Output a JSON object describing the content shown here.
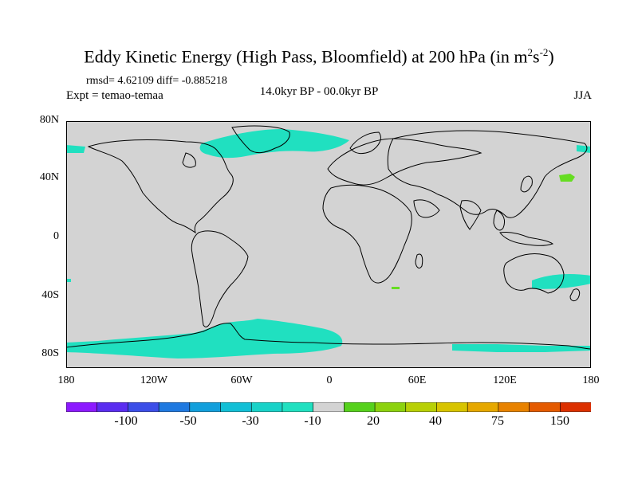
{
  "title": {
    "main": "Eddy Kinetic Energy (High Pass, Bloomfield) at 200 hPa (in m",
    "sup1": "2",
    "mid": "s",
    "sup2": "-2",
    "close": ")"
  },
  "stats": "rmsd= 4.62109 diff= -0.885218",
  "expt": "Expt = temao-temaa",
  "period": "14.0kyr BP - 00.0kyr BP",
  "season": "JJA",
  "map": {
    "projection": "cylindrical equidistant",
    "lon_range": [
      -180,
      180
    ],
    "lat_range": [
      -90,
      90
    ],
    "land_outline": "black coastlines",
    "background_color": "#d3d3d3",
    "lat_tick_labels": [
      "80N",
      "40N",
      "0",
      "40S",
      "80S"
    ],
    "lon_tick_labels": [
      "180",
      "120W",
      "60W",
      "0",
      "60E",
      "120E",
      "180"
    ],
    "anomaly_regions": [
      {
        "region": "North Atlantic / Greenland",
        "category": "-30 to -10",
        "color": "#20e0c0"
      },
      {
        "region": "Southern Ocean (Pacific/Atlantic sector)",
        "category": "-30 to -10",
        "color": "#20e0c0"
      },
      {
        "region": "Southern Ocean (Indian sector)",
        "category": "-30 to -10",
        "color": "#20e0c0"
      },
      {
        "region": "South of Australia",
        "category": "-30 to -10",
        "color": "#20e0c0"
      },
      {
        "region": "North Pacific",
        "category": "10 to 20",
        "color": "#66dd22"
      }
    ]
  },
  "colorbar": {
    "colors": [
      "#8c1aff",
      "#5a2df0",
      "#3c4ee8",
      "#1f79e0",
      "#129fdc",
      "#12bfd6",
      "#18d2c8",
      "#20e0c0",
      "#d3d3d3",
      "#56d11c",
      "#8cd20e",
      "#b8d006",
      "#d8c400",
      "#e6a800",
      "#e88200",
      "#e45a00",
      "#dc3000"
    ],
    "labels": [
      "-100",
      "-50",
      "-30",
      "-10",
      "20",
      "40",
      "75",
      "150"
    ]
  }
}
